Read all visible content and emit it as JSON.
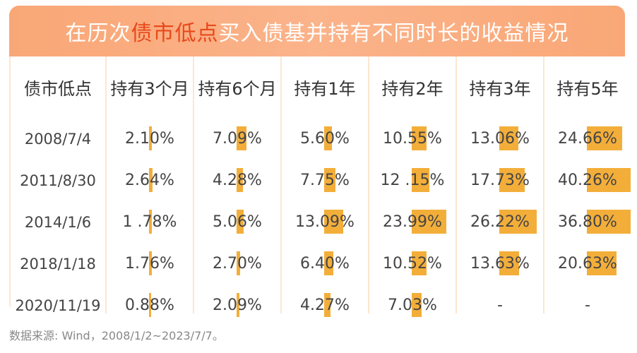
{
  "title": {
    "prefix": "在历次",
    "highlight": "债市低点",
    "suffix": "买入债基并持有不同时长的收益情况"
  },
  "source_note": "数据来源: Wind，2008/1/2~2023/7/7。",
  "colors": {
    "bar": "#f3ae3a",
    "banner": "#f9a776",
    "highlight": "#e8491b",
    "card": "#fde6cf"
  },
  "chart_data": {
    "type": "table",
    "columns": [
      "债市低点",
      "持有3个月",
      "持有6个月",
      "持有1年",
      "持有2年",
      "持有3年",
      "持有5年"
    ],
    "rows": [
      {
        "date": "2008/7/4",
        "labels": [
          "2.10%",
          "7.09%",
          "5.60%",
          "10.55%",
          "13.06%",
          "24.66%"
        ],
        "values": [
          2.1,
          7.09,
          5.6,
          10.55,
          13.06,
          24.66
        ]
      },
      {
        "date": "2011/8/30",
        "labels": [
          "2.64%",
          "4.28%",
          "7.75%",
          "12 .15%",
          "17.73%",
          "40.26%"
        ],
        "values": [
          2.64,
          4.28,
          7.75,
          12.15,
          17.73,
          40.26
        ]
      },
      {
        "date": "2014/1/6",
        "labels": [
          "1 .78%",
          "5.06%",
          "13.09%",
          "23.99%",
          "26.22%",
          "36.80%"
        ],
        "values": [
          1.78,
          5.06,
          13.09,
          23.99,
          26.22,
          36.8
        ]
      },
      {
        "date": "2018/1/18",
        "labels": [
          "1.76%",
          "2.70%",
          "6.40%",
          "10.52%",
          "13.63%",
          "20.63%"
        ],
        "values": [
          1.76,
          2.7,
          6.4,
          10.52,
          13.63,
          20.63
        ]
      },
      {
        "date": "2020/11/19",
        "labels": [
          "0.88%",
          "2.09%",
          "4.27%",
          "7.03%",
          "-",
          "-"
        ],
        "values": [
          0.88,
          2.09,
          4.27,
          7.03,
          null,
          null
        ]
      }
    ],
    "bar_scale_max": 40.26
  }
}
